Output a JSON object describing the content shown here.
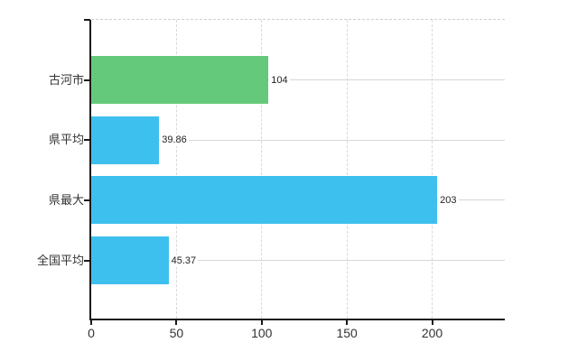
{
  "chart_data": {
    "type": "bar",
    "orientation": "horizontal",
    "title": "",
    "xlabel": "",
    "ylabel": "",
    "categories": [
      "古河市",
      "県平均",
      "県最大",
      "全国平均"
    ],
    "values": [
      104,
      39.86,
      203,
      45.37
    ],
    "value_labels": [
      "104",
      "39.86",
      "203",
      "45.37"
    ],
    "bar_colors": [
      "#65c97b",
      "#3ec0ef",
      "#3ec0ef",
      "#3ec0ef"
    ],
    "x_ticks": [
      0,
      50,
      100,
      150,
      200
    ],
    "x_tick_labels": [
      "0",
      "50",
      "100",
      "150",
      "200"
    ],
    "xlim": [
      0,
      242.6
    ],
    "legend": "none",
    "grid": {
      "vertical": "dashed",
      "horizontal": "solid",
      "top_border": "dashed"
    }
  },
  "colors": {
    "green_bar": "#65c97b",
    "blue_bar": "#3ec0ef",
    "axis": "#1a1a1a",
    "grid_vertical": "#d9d9d9",
    "grid_horizontal": "#d3d9d3",
    "tick_text": "#333333",
    "value_text": "#222222",
    "background": "#ffffff"
  }
}
